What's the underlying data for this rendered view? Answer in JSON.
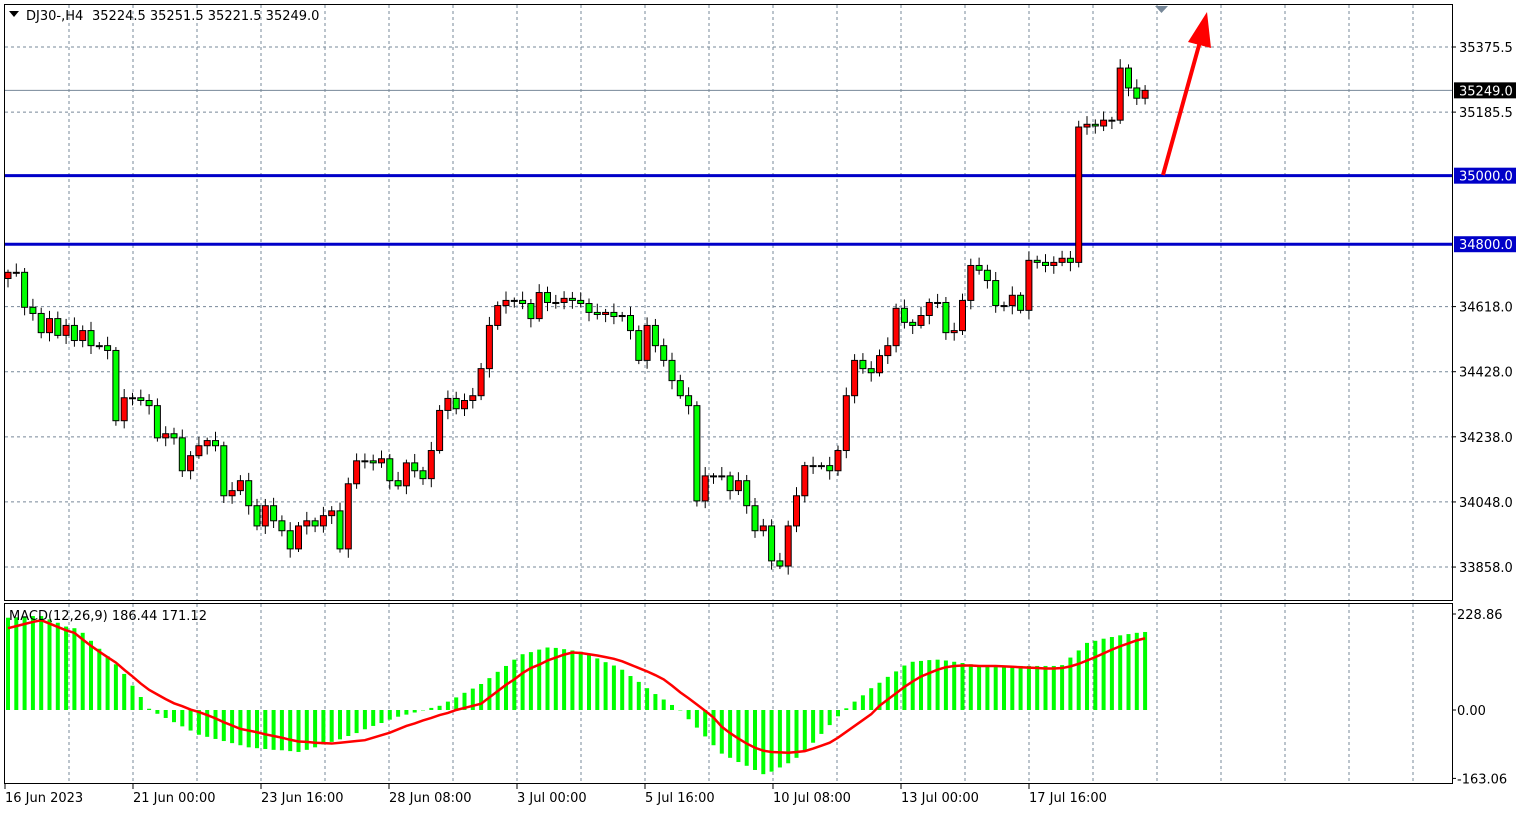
{
  "header": {
    "symbol": "DJ30-,H4",
    "ohlc_text": "35224.5 35251.5 35221.5 35249.0"
  },
  "colors": {
    "bull": "#ff0000",
    "bear": "#00ff00",
    "level_line": "#0000c8",
    "arrow": "#ff0000",
    "macd_hist": "#00ff00",
    "macd_signal": "#ff0000",
    "grid": "#778899"
  },
  "chart_data": [
    {
      "type": "candlestick",
      "title": "DJ30-,H4",
      "ylim": [
        33760,
        35500
      ],
      "price_ticks": [
        "35375.5",
        "35185.5",
        "34618.0",
        "34428.0",
        "34238.0",
        "34048.0",
        "33858.0"
      ],
      "price_tick_values": [
        35375.5,
        35185.5,
        34618.0,
        34428.0,
        34238.0,
        34048.0,
        33858.0
      ],
      "time_ticks": [
        "16 Jun 2023",
        "21 Jun 00:00",
        "23 Jun 16:00",
        "28 Jun 08:00",
        "3 Jul 00:00",
        "5 Jul 16:00",
        "10 Jul 08:00",
        "13 Jul 00:00",
        "17 Jul 16:00"
      ],
      "grid": true,
      "current_price": {
        "value": 35249.0,
        "label": "35249.0"
      },
      "horizontal_levels": [
        {
          "value": 35000.0,
          "label": "35000.0"
        },
        {
          "value": 34800.0,
          "label": "34800.0"
        }
      ],
      "annotation": "upward red arrow from 35000 level",
      "first_open": 34700,
      "close": [
        34718,
        34718,
        34616,
        34598,
        34542,
        34583,
        34534,
        34563,
        34519,
        34548,
        34504,
        34504,
        34490,
        34285,
        34352,
        34352,
        34344,
        34329,
        34235,
        34247,
        34235,
        34139,
        34183,
        34212,
        34227,
        34212,
        34066,
        34081,
        34110,
        34037,
        33978,
        34037,
        33993,
        33964,
        33911,
        33978,
        33993,
        33978,
        34008,
        34022,
        33911,
        34101,
        34168,
        34168,
        34162,
        34174,
        34110,
        34095,
        34162,
        34139,
        34116,
        34198,
        34315,
        34350,
        34320,
        34344,
        34358,
        34437,
        34563,
        34621,
        34636,
        34636,
        34627,
        34583,
        34659,
        34630,
        34630,
        34642,
        34636,
        34627,
        34601,
        34595,
        34601,
        34589,
        34592,
        34548,
        34461,
        34563,
        34504,
        34461,
        34402,
        34358,
        34329,
        34051,
        34124,
        34124,
        34124,
        34081,
        34110,
        34037,
        33964,
        33978,
        33876,
        33861,
        33978,
        34066,
        34154,
        34154,
        34154,
        34139,
        34198,
        34358,
        34461,
        34437,
        34425,
        34475,
        34504,
        34613,
        34572,
        34563,
        34592,
        34630,
        34630,
        34542,
        34548,
        34636,
        34738,
        34724,
        34694,
        34621,
        34621,
        34651,
        34607,
        34753,
        34747,
        34738,
        34747,
        34759,
        34747,
        35142,
        35150,
        35145,
        35162,
        35162,
        35314,
        35256,
        35226,
        35249
      ]
    },
    {
      "type": "bar+line",
      "title": "MACD(12,26,9) 186.44 171.12",
      "ylim": [
        -163.06,
        228.86
      ],
      "ticks": [
        "228.86",
        "0.00",
        "-163.06"
      ],
      "tick_values": [
        228.86,
        0,
        -163.06
      ],
      "histogram": [
        220,
        221,
        223,
        224,
        224,
        216,
        208,
        199,
        195,
        184,
        165,
        146,
        128,
        109,
        86,
        58,
        31,
        3,
        -9,
        -19,
        -29,
        -39,
        -49,
        -59,
        -64,
        -69,
        -74,
        -79,
        -84,
        -89,
        -91,
        -93,
        -95,
        -96,
        -98,
        -100,
        -95,
        -89,
        -82,
        -76,
        -70,
        -62,
        -55,
        -46,
        -38,
        -31,
        -23,
        -16,
        -11,
        -6,
        -1,
        5,
        10,
        20,
        30,
        41,
        51,
        62,
        76,
        91,
        105,
        120,
        133,
        138,
        144,
        149,
        148,
        145,
        142,
        139,
        131,
        123,
        114,
        106,
        96,
        81,
        67,
        52,
        38,
        25,
        12,
        -1,
        -22,
        -42,
        -63,
        -84,
        -104,
        -114,
        -124,
        -133,
        -143,
        -153,
        -147,
        -137,
        -127,
        -114,
        -98,
        -78,
        -57,
        -36,
        -15,
        4,
        20,
        35,
        52,
        65,
        79,
        92,
        106,
        115,
        117,
        119,
        120,
        118,
        115,
        112,
        109,
        105,
        105,
        105,
        105,
        105,
        105,
        105,
        105,
        105,
        105,
        107,
        125,
        142,
        160,
        165,
        170,
        174,
        178,
        181,
        184,
        186
      ],
      "signal": [
        195,
        200,
        205,
        210,
        214,
        206,
        198,
        190,
        184,
        168,
        153,
        139,
        126,
        113,
        96,
        80,
        63,
        48,
        37,
        26,
        16,
        9,
        1,
        -5,
        -12,
        -20,
        -29,
        -37,
        -45,
        -49,
        -53,
        -58,
        -62,
        -66,
        -71,
        -75,
        -76,
        -78,
        -79,
        -80,
        -78,
        -76,
        -74,
        -72,
        -66,
        -60,
        -54,
        -46,
        -38,
        -32,
        -25,
        -19,
        -12,
        -7,
        0,
        5,
        10,
        15,
        30,
        45,
        60,
        73,
        88,
        100,
        108,
        118,
        125,
        132,
        137,
        136,
        133,
        130,
        126,
        122,
        116,
        108,
        100,
        92,
        83,
        73,
        58,
        42,
        28,
        13,
        -2,
        -18,
        -40,
        -55,
        -68,
        -80,
        -90,
        -97,
        -100,
        -101,
        -102,
        -100,
        -98,
        -92,
        -85,
        -78,
        -66,
        -52,
        -38,
        -24,
        -10,
        10,
        25,
        40,
        55,
        68,
        80,
        88,
        96,
        102,
        105,
        106,
        106,
        105,
        105,
        105,
        104,
        103,
        102,
        101,
        100,
        99,
        99,
        100,
        104,
        110,
        118,
        126,
        135,
        144,
        152,
        159,
        166,
        171
      ]
    }
  ]
}
